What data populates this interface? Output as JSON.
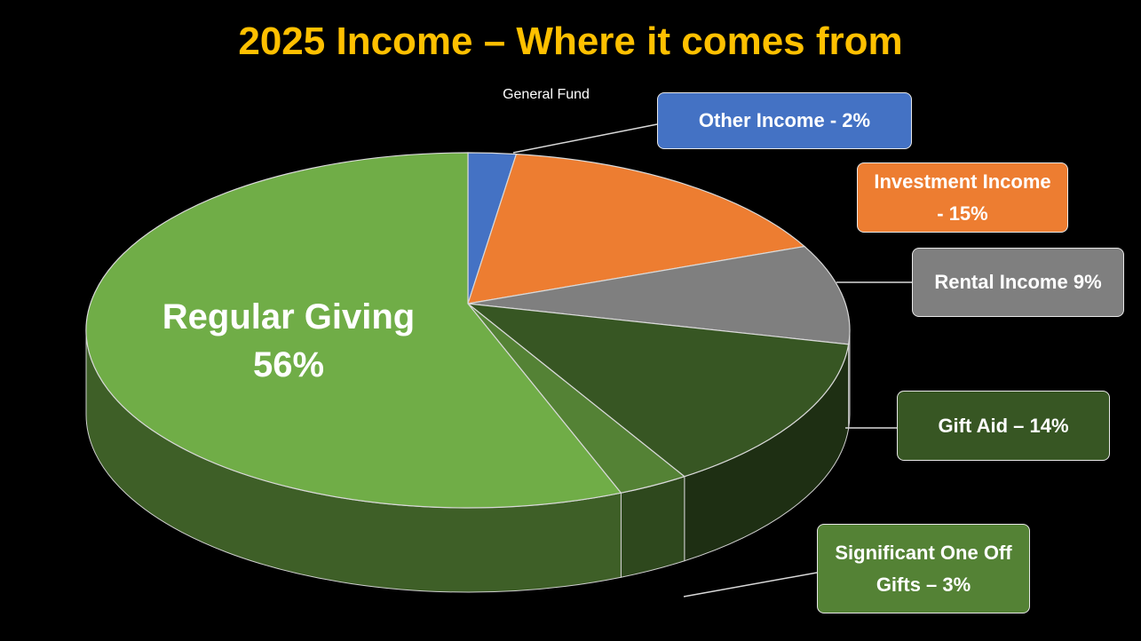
{
  "chart_data": {
    "type": "pie",
    "title": "2025 Income – Where it comes from",
    "subtitle": "General Fund",
    "categories": [
      "Other Income - 2%",
      "Investment Income - 15%",
      "Rental Income 9%",
      "Gift Aid – 14%",
      "Significant One Off Gifts – 3%",
      "Regular Giving 56%"
    ],
    "values": [
      2,
      15,
      9,
      14,
      3,
      56
    ],
    "colors": [
      "#4472c4",
      "#ed7d31",
      "#7f7f7f",
      "#375623",
      "#548235",
      "#70ad47"
    ]
  }
}
